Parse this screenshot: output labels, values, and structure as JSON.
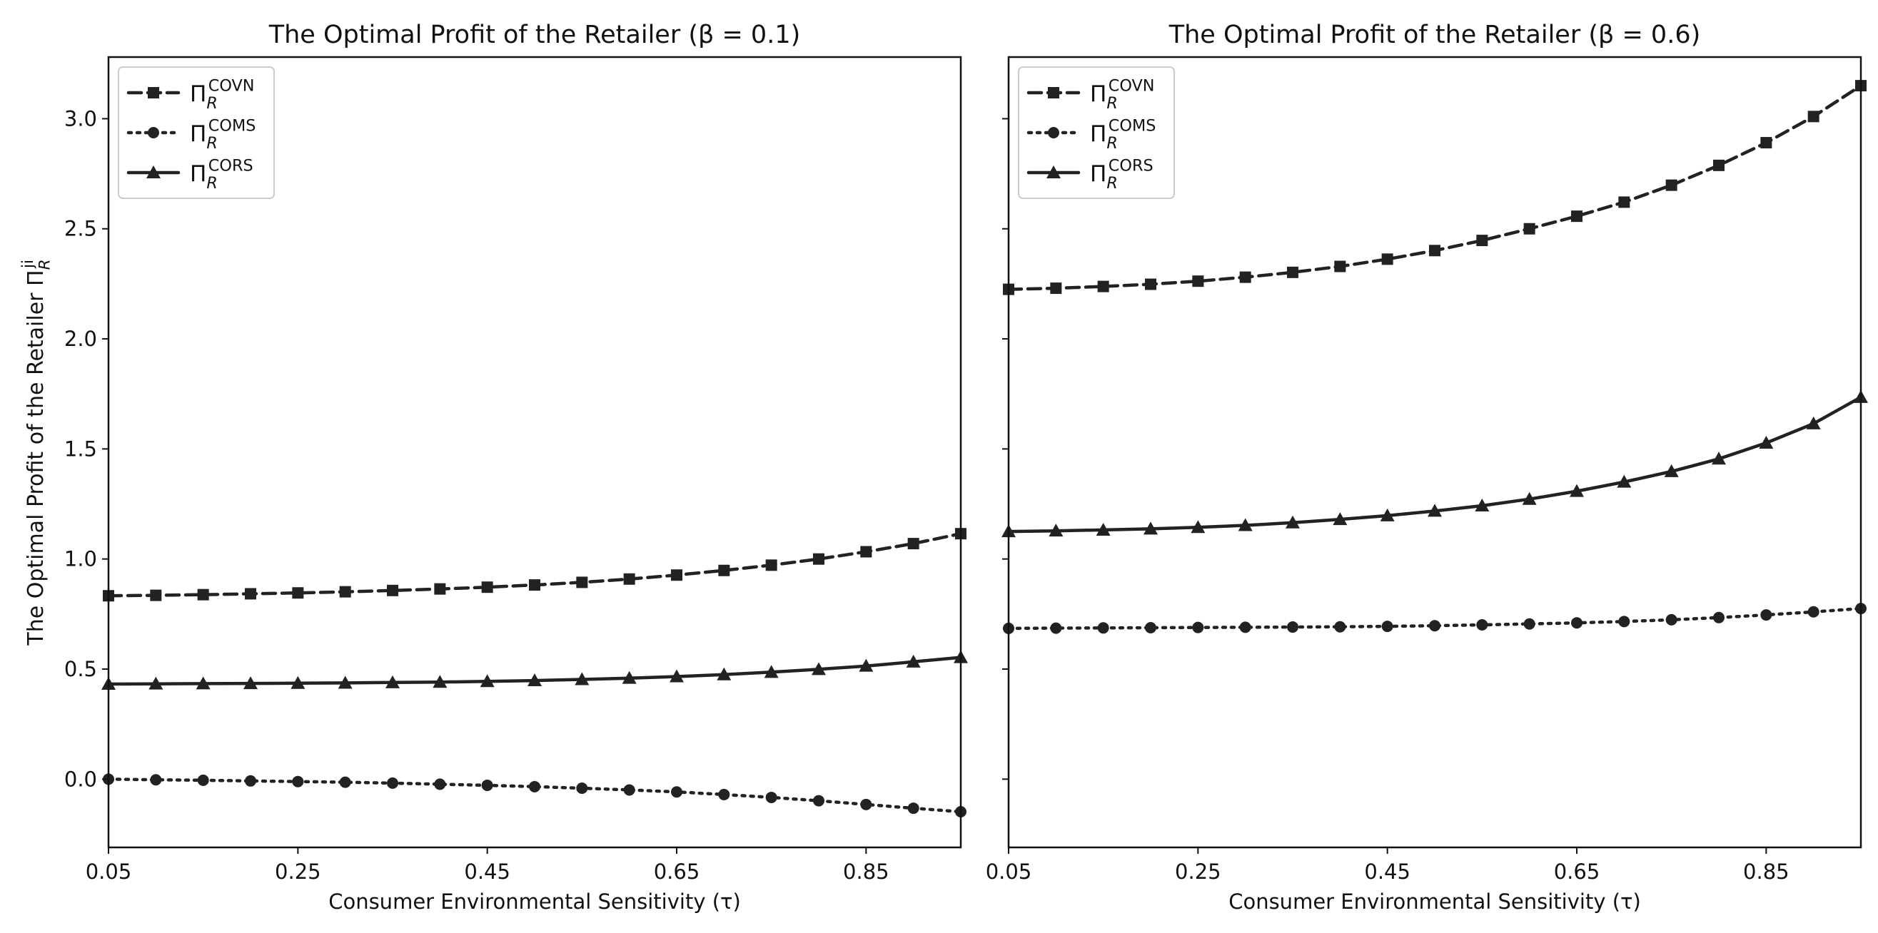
{
  "chart_data": [
    {
      "type": "line",
      "title": "The Optimal Profit of the Retailer (β = 0.1)",
      "xlabel": "Consumer Environmental Sensitivity (τ)",
      "ylabel": "The Optimal Profit of the Retailer Π_R^ji",
      "xlim": [
        0.05,
        0.95
      ],
      "ylim": [
        -0.31,
        3.28
      ],
      "xticks": [
        "0.05",
        "0.25",
        "0.45",
        "0.65",
        "0.85"
      ],
      "yticks": [
        "0.0",
        "0.5",
        "1.0",
        "1.5",
        "2.0",
        "2.5",
        "3.0"
      ],
      "x": [
        0.05,
        0.1,
        0.15,
        0.2,
        0.25,
        0.3,
        0.35,
        0.4,
        0.45,
        0.5,
        0.55,
        0.6,
        0.65,
        0.7,
        0.75,
        0.8,
        0.85,
        0.9,
        0.95
      ],
      "legend_position": "top-left",
      "series": [
        {
          "name": "Π_R^COVN",
          "style": "dashed",
          "marker": "square",
          "values": [
            0.833,
            0.835,
            0.838,
            0.842,
            0.846,
            0.851,
            0.857,
            0.864,
            0.872,
            0.882,
            0.894,
            0.909,
            0.927,
            0.948,
            0.972,
            1.0,
            1.033,
            1.07,
            1.115
          ]
        },
        {
          "name": "Π_R^COMS",
          "style": "dotted",
          "marker": "circle",
          "values": [
            0.0,
            -0.003,
            -0.005,
            -0.008,
            -0.011,
            -0.014,
            -0.018,
            -0.023,
            -0.028,
            -0.034,
            -0.041,
            -0.049,
            -0.058,
            -0.07,
            -0.083,
            -0.098,
            -0.115,
            -0.132,
            -0.148
          ]
        },
        {
          "name": "Π_R^CORS",
          "style": "solid",
          "marker": "triangle",
          "values": [
            0.432,
            0.433,
            0.434,
            0.435,
            0.436,
            0.437,
            0.439,
            0.441,
            0.444,
            0.448,
            0.453,
            0.459,
            0.466,
            0.475,
            0.486,
            0.499,
            0.514,
            0.533,
            0.553
          ]
        }
      ]
    },
    {
      "type": "line",
      "title": "The Optimal Profit of the Retailer (β = 0.6)",
      "xlabel": "Consumer Environmental Sensitivity (τ)",
      "xlim": [
        0.05,
        0.95
      ],
      "ylim": [
        -0.31,
        3.28
      ],
      "xticks": [
        "0.05",
        "0.25",
        "0.45",
        "0.65",
        "0.85"
      ],
      "x": [
        0.05,
        0.1,
        0.15,
        0.2,
        0.25,
        0.3,
        0.35,
        0.4,
        0.45,
        0.5,
        0.55,
        0.6,
        0.65,
        0.7,
        0.75,
        0.8,
        0.85,
        0.9,
        0.95
      ],
      "legend_position": "top-left",
      "series": [
        {
          "name": "Π_R^COVN",
          "style": "dashed",
          "marker": "square",
          "values": [
            2.225,
            2.23,
            2.238,
            2.248,
            2.262,
            2.28,
            2.302,
            2.329,
            2.362,
            2.401,
            2.447,
            2.5,
            2.557,
            2.621,
            2.698,
            2.788,
            2.891,
            3.01,
            3.15
          ]
        },
        {
          "name": "Π_R^COMS",
          "style": "dotted",
          "marker": "circle",
          "values": [
            0.685,
            0.686,
            0.687,
            0.688,
            0.689,
            0.69,
            0.691,
            0.692,
            0.694,
            0.697,
            0.701,
            0.705,
            0.71,
            0.716,
            0.724,
            0.734,
            0.746,
            0.76,
            0.775
          ]
        },
        {
          "name": "Π_R^CORS",
          "style": "solid",
          "marker": "triangle",
          "values": [
            1.125,
            1.128,
            1.132,
            1.137,
            1.144,
            1.153,
            1.165,
            1.18,
            1.197,
            1.218,
            1.242,
            1.272,
            1.308,
            1.35,
            1.398,
            1.455,
            1.527,
            1.615,
            1.735
          ]
        }
      ]
    }
  ]
}
